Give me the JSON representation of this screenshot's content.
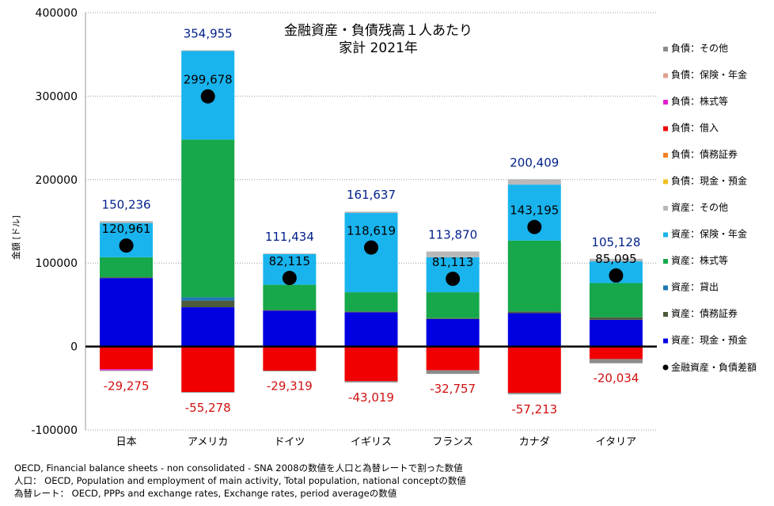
{
  "chart_data": {
    "type": "bar",
    "stacked": true,
    "title": "金融資産・負債残高１人あたり",
    "subtitle": "家計 2021年",
    "ylabel": "金額 [ドル]",
    "xlabel": "",
    "ylim": [
      -100000,
      400000
    ],
    "yticks": [
      "400000",
      "300000",
      "200000",
      "100000",
      "0",
      "-100000"
    ],
    "grid": true,
    "legend_position": "right",
    "categories": [
      "日本",
      "アメリカ",
      "ドイツ",
      "イギリス",
      "フランス",
      "カナダ",
      "イタリア"
    ],
    "series": [
      {
        "name": "資産：現金・預金",
        "color": "#0000e0",
        "values": [
          82000,
          47000,
          43000,
          41000,
          33000,
          40000,
          32000
        ]
      },
      {
        "name": "資産：債務証券",
        "color": "#4d5a3c",
        "values": [
          1000,
          8000,
          1000,
          1000,
          1000,
          2000,
          3000
        ]
      },
      {
        "name": "資産：貸出",
        "color": "#1f77b4",
        "values": [
          0,
          4000,
          0,
          0,
          0,
          0,
          0
        ]
      },
      {
        "name": "資産：株式等",
        "color": "#16a84a",
        "values": [
          24000,
          189000,
          30000,
          23000,
          31000,
          85000,
          41000
        ]
      },
      {
        "name": "資産：保険・年金",
        "color": "#19b4ee",
        "values": [
          41000,
          106000,
          37000,
          95000,
          42000,
          67000,
          26000
        ]
      },
      {
        "name": "資産：その他",
        "color": "#b8b8b8",
        "values": [
          2236,
          955,
          434,
          1637,
          6870,
          6409,
          3128
        ]
      },
      {
        "name": "負債：現金・預金",
        "color": "#f0c020",
        "values": [
          0,
          0,
          0,
          0,
          0,
          0,
          0
        ]
      },
      {
        "name": "負債：債務証券",
        "color": "#f08020",
        "values": [
          0,
          0,
          0,
          0,
          0,
          0,
          0
        ]
      },
      {
        "name": "負債：借入",
        "color": "#f00000",
        "values": [
          -27000,
          -54500,
          -29000,
          -41500,
          -28500,
          -55500,
          -15000
        ]
      },
      {
        "name": "負債：株式等",
        "color": "#e020d0",
        "values": [
          -1500,
          0,
          0,
          0,
          0,
          0,
          0
        ]
      },
      {
        "name": "負債：保険・年金",
        "color": "#e0a090",
        "values": [
          0,
          0,
          0,
          0,
          0,
          0,
          0
        ]
      },
      {
        "name": "負債：その他",
        "color": "#8c8c8c",
        "values": [
          -775,
          -778,
          -319,
          -1519,
          -4257,
          -1713,
          -5034
        ]
      }
    ],
    "asset_totals": [
      "150,236",
      "354,955",
      "111,434",
      "161,637",
      "113,870",
      "200,409",
      "105,128"
    ],
    "liability_totals": [
      "-29,275",
      "-55,278",
      "-29,319",
      "-43,019",
      "-32,757",
      "-57,213",
      "-20,034"
    ],
    "net": {
      "name": "金融資産・負債差額",
      "values": [
        120961,
        299678,
        82115,
        118619,
        81113,
        143195,
        85095
      ],
      "labels": [
        "120,961",
        "299,678",
        "82,115",
        "118,619",
        "81,113",
        "143,195",
        "85,095"
      ]
    }
  },
  "notes": [
    "OECD, Financial balance sheets -  non consolidated - SNA 2008の数値を人口と為替レートで割った数値",
    "人口： OECD, Population and employment of main activity, Total population, national conceptの数値",
    "為替レート： OECD, PPPs and exchange rates, Exchange rates, period averageの数値"
  ]
}
